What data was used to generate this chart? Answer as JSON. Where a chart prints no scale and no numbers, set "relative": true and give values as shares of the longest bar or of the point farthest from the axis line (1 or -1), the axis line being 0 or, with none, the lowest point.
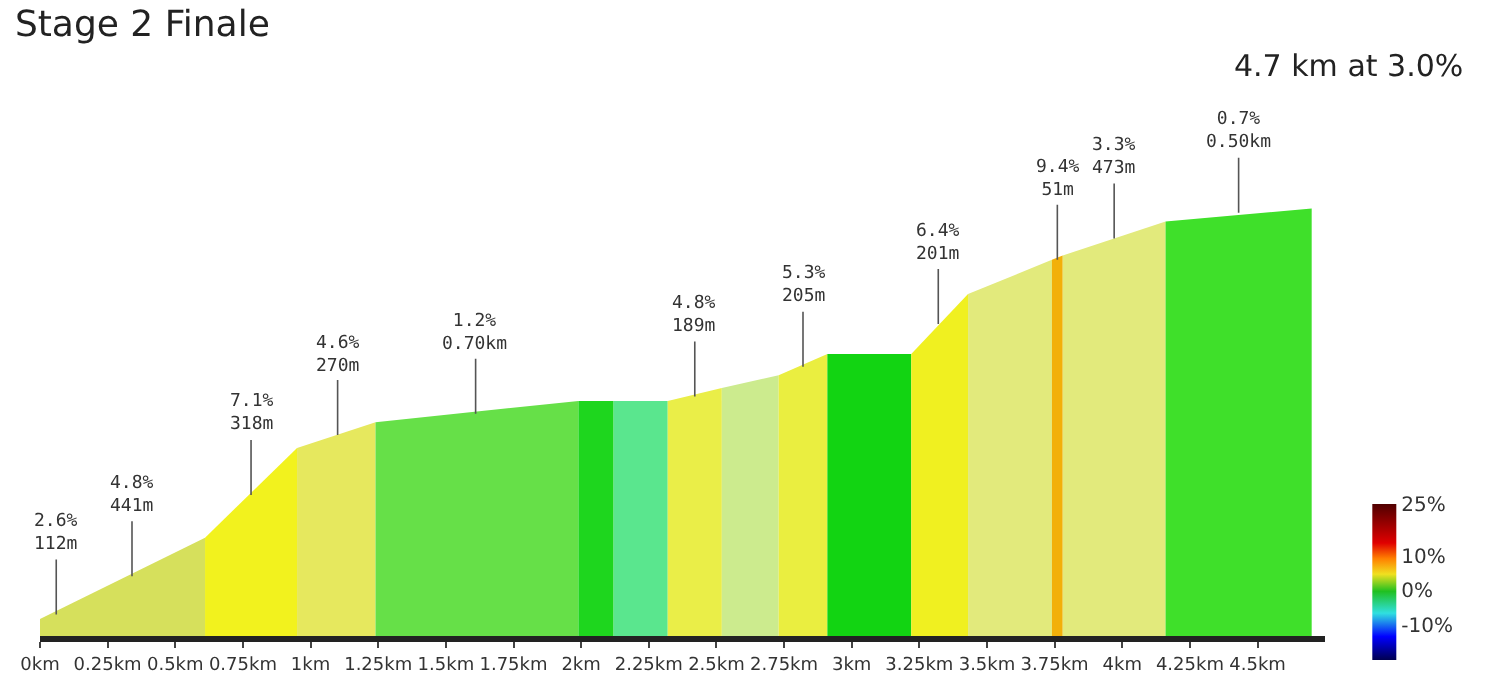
{
  "chart_data": {
    "type": "area",
    "title": "Stage 2 Finale",
    "subtitle": "4.7 km at 3.0%",
    "relative": true,
    "series": [
      {
        "color": "#d6e05c",
        "x": [
          0,
          0.61
        ],
        "values": [
          0.04,
          0.23
        ]
      },
      {
        "color": "#f2f21e",
        "x": [
          0.61,
          0.95
        ],
        "values": [
          0.23,
          0.44
        ]
      },
      {
        "color": "#e6e85e",
        "x": [
          0.95,
          1.24
        ],
        "values": [
          0.44,
          0.5
        ]
      },
      {
        "color": "#66e048",
        "x": [
          1.24,
          1.99
        ],
        "values": [
          0.5,
          0.55
        ]
      },
      {
        "color": "#1ed61e",
        "x": [
          1.99,
          2.12
        ],
        "values": [
          0.55,
          0.55
        ]
      },
      {
        "color": "#5ae68e",
        "x": [
          2.12,
          2.32
        ],
        "values": [
          0.55,
          0.55
        ]
      },
      {
        "color": "#eaee48",
        "x": [
          2.32,
          2.52
        ],
        "values": [
          0.55,
          0.58
        ]
      },
      {
        "color": "#cceb8e",
        "x": [
          2.52,
          2.73
        ],
        "values": [
          0.58,
          0.61
        ]
      },
      {
        "color": "#eaee40",
        "x": [
          2.73,
          2.91
        ],
        "values": [
          0.61,
          0.66
        ]
      },
      {
        "color": "#12d412",
        "x": [
          2.91,
          3.22
        ],
        "values": [
          0.66,
          0.66
        ]
      },
      {
        "color": "#f0f020",
        "x": [
          3.22,
          3.43
        ],
        "values": [
          0.66,
          0.8
        ]
      },
      {
        "color": "#e2ea7c",
        "x": [
          3.43,
          3.74
        ],
        "values": [
          0.8,
          0.88
        ]
      },
      {
        "color": "#f2b00a",
        "x": [
          3.74,
          3.78
        ],
        "values": [
          0.88,
          0.89
        ]
      },
      {
        "color": "#e2ea7c",
        "x": [
          3.78,
          4.16
        ],
        "values": [
          0.89,
          0.97
        ]
      },
      {
        "color": "#3fe02a",
        "x": [
          4.16,
          4.7
        ],
        "values": [
          0.97,
          1
        ]
      }
    ],
    "xlim": [
      0,
      4.75
    ],
    "xticks": [
      {
        "value": 0,
        "label": "0km"
      },
      {
        "value": 0.25,
        "label": "0.25km"
      },
      {
        "value": 0.5,
        "label": "0.5km"
      },
      {
        "value": 0.75,
        "label": "0.75km"
      },
      {
        "value": 1,
        "label": "1km"
      },
      {
        "value": 1.25,
        "label": "1.25km"
      },
      {
        "value": 1.5,
        "label": "1.5km"
      },
      {
        "value": 1.75,
        "label": "1.75km"
      },
      {
        "value": 2,
        "label": "2km"
      },
      {
        "value": 2.25,
        "label": "2.25km"
      },
      {
        "value": 2.5,
        "label": "2.5km"
      },
      {
        "value": 2.75,
        "label": "2.75km"
      },
      {
        "value": 3,
        "label": "3km"
      },
      {
        "value": 3.25,
        "label": "3.25km"
      },
      {
        "value": 3.5,
        "label": "3.5km"
      },
      {
        "value": 3.75,
        "label": "3.75km"
      },
      {
        "value": 4,
        "label": "4km"
      },
      {
        "value": 4.25,
        "label": "4.25km"
      },
      {
        "value": 4.5,
        "label": "4.5km"
      }
    ],
    "clim": [
      -20,
      25
    ],
    "cticks": [
      {
        "value": 25,
        "label": "25%"
      },
      {
        "value": 10,
        "label": "10%"
      },
      {
        "value": 0,
        "label": "0%"
      },
      {
        "value": -10,
        "label": "-10%"
      }
    ],
    "annotations": [
      {
        "text": "2.6%\n112m",
        "x": 0.06,
        "y": 0.05
      },
      {
        "text": "4.8%\n441m",
        "x": 0.34,
        "y": 0.14
      },
      {
        "text": "7.1%\n318m",
        "x": 0.78,
        "y": 0.33
      },
      {
        "text": "4.6%\n270m",
        "x": 1.1,
        "y": 0.47
      },
      {
        "text": "1.2%\n0.70km",
        "x": 1.61,
        "y": 0.52
      },
      {
        "text": "4.8%\n189m",
        "x": 2.42,
        "y": 0.56
      },
      {
        "text": "5.3%\n205m",
        "x": 2.82,
        "y": 0.63
      },
      {
        "text": "6.4%\n201m",
        "x": 3.32,
        "y": 0.73
      },
      {
        "text": "9.4%\n51m",
        "x": 3.76,
        "y": 0.88
      },
      {
        "text": "3.3%\n473m",
        "x": 3.97,
        "y": 0.93
      },
      {
        "text": "0.7%\n0.50km",
        "x": 4.43,
        "y": 0.99
      }
    ]
  }
}
